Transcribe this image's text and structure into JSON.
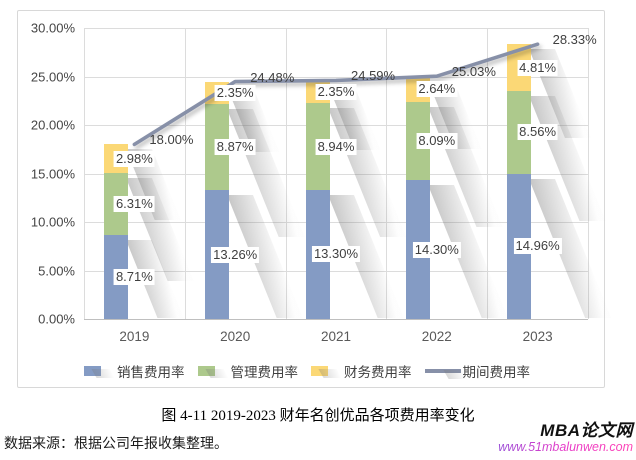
{
  "chart_data": {
    "type": "bar",
    "subtype": "stacked-column-with-line",
    "categories": [
      "2019",
      "2020",
      "2021",
      "2022",
      "2023"
    ],
    "series": [
      {
        "name": "销售费用率",
        "kind": "bar",
        "color": "#849bc4",
        "values": [
          8.71,
          13.26,
          13.3,
          14.3,
          14.96
        ],
        "labels": [
          "8.71%",
          "13.26%",
          "13.30%",
          "14.30%",
          "14.96%"
        ]
      },
      {
        "name": "管理费用率",
        "kind": "bar",
        "color": "#adc98c",
        "values": [
          6.31,
          8.87,
          8.94,
          8.09,
          8.56
        ],
        "labels": [
          "6.31%",
          "8.87%",
          "8.94%",
          "8.09%",
          "8.56%"
        ]
      },
      {
        "name": "财务费用率",
        "kind": "bar",
        "color": "#fbd876",
        "values": [
          2.98,
          2.35,
          2.35,
          2.64,
          4.81
        ],
        "labels": [
          "2.98%",
          "2.35%",
          "2.35%",
          "2.64%",
          "4.81%"
        ]
      },
      {
        "name": "期间费用率",
        "kind": "line",
        "color": "#8790a8",
        "values": [
          18.0,
          24.48,
          24.59,
          25.03,
          28.33
        ],
        "labels": [
          "18.00%",
          "24.48%",
          "24.59%",
          "25.03%",
          "28.33%"
        ]
      }
    ],
    "ylim": [
      0,
      30
    ],
    "yticks": [
      "0.00%",
      "5.00%",
      "10.00%",
      "15.00%",
      "20.00%",
      "25.00%",
      "30.00%"
    ],
    "grid": true,
    "legend_position": "bottom"
  },
  "caption": "图 4-11 2019-2023 财年名创优品各项费用率变化",
  "source_note": "数据来源：根据公司年报收集整理。",
  "watermark": {
    "title": "MBA论文网",
    "url": "www.51mbalunwen.com"
  }
}
